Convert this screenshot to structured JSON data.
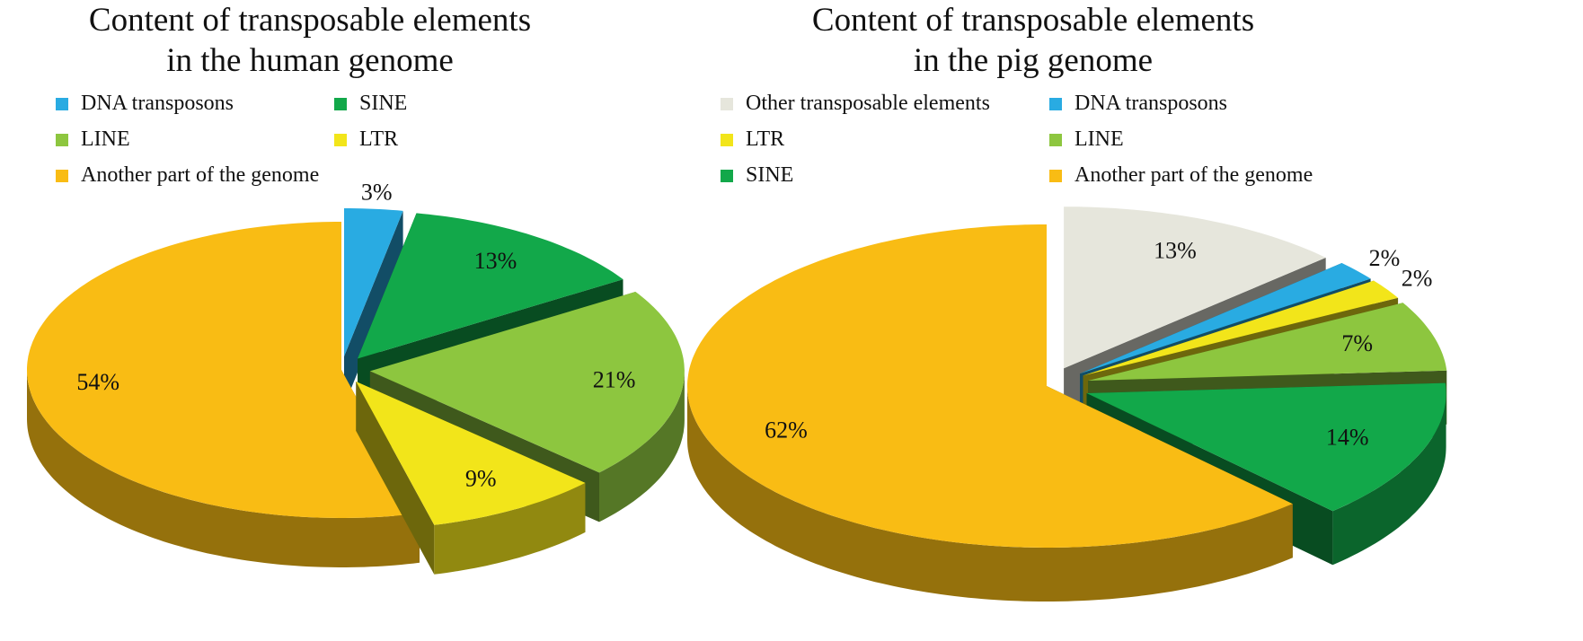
{
  "chart_data": [
    {
      "type": "pie3d",
      "title": "Content of transposable elements\nin the human genome",
      "categories": [
        "DNA transposons",
        "SINE",
        "LINE",
        "LTR",
        "Another part of the genome"
      ],
      "values": [
        3,
        13,
        21,
        9,
        54
      ],
      "value_labels": [
        "3%",
        "13%",
        "21%",
        "9%",
        "54%"
      ],
      "colors": [
        "#29abe2",
        "#12a84a",
        "#8dc63f",
        "#f2e51a",
        "#f9bc14"
      ]
    },
    {
      "type": "pie3d",
      "title": "Content of transposable elements\nin the pig genome",
      "categories": [
        "Other transposable elements",
        "DNA transposons",
        "LTR",
        "LINE",
        "SINE",
        "Another part of the genome"
      ],
      "values": [
        13,
        2,
        2,
        7,
        14,
        62
      ],
      "value_labels": [
        "13%",
        "2%",
        "2%",
        "7%",
        "14%",
        "62%"
      ],
      "colors": [
        "#e6e6dc",
        "#29abe2",
        "#f2e51a",
        "#8dc63f",
        "#12a84a",
        "#f9bc14"
      ]
    }
  ]
}
